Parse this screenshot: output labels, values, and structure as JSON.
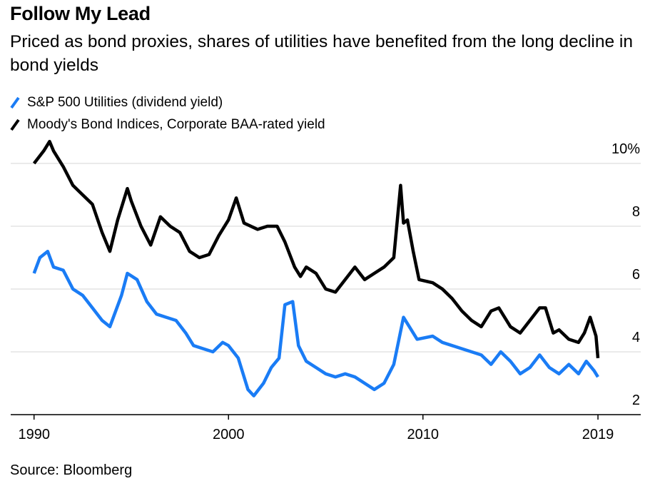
{
  "chart_data": {
    "type": "line",
    "title": "Follow My Lead",
    "subtitle": "Priced as bond proxies, shares of utilities have benefited from the long decline in bond yields",
    "source": "Source: Bloomberg",
    "xlim": [
      1988.8,
      2021.2
    ],
    "xticks": [
      1990,
      2000,
      2010,
      2019
    ],
    "ylim": [
      2,
      11
    ],
    "yticks": [
      2,
      4,
      6,
      8,
      {
        "value": 10,
        "label": "10%"
      }
    ],
    "grid": true,
    "series": [
      {
        "name": "S&P 500 Utilities (dividend yield)",
        "color": "#1a7cf5",
        "x": [
          1990.0,
          1990.3,
          1990.7,
          1991.0,
          1991.5,
          1992.0,
          1992.5,
          1993.0,
          1993.5,
          1993.9,
          1994.5,
          1994.8,
          1995.3,
          1995.8,
          1996.3,
          1996.8,
          1997.3,
          1997.8,
          1998.2,
          1998.7,
          1999.2,
          1999.7,
          2000.0,
          2000.5,
          2001.0,
          2001.3,
          2001.8,
          2002.2,
          2002.6,
          2002.9,
          2003.3,
          2003.6,
          2004.0,
          2004.5,
          2005.0,
          2005.5,
          2006.0,
          2006.5,
          2007.0,
          2007.5,
          2008.0,
          2008.5,
          2009.0,
          2009.3,
          2009.7,
          2010.5,
          2011.0,
          2011.5,
          2012.0,
          2012.5,
          2013.0,
          2013.5,
          2014.0,
          2014.5,
          2015.0,
          2015.5,
          2016.0,
          2016.5,
          2017.0,
          2017.5,
          2018.0,
          2018.4,
          2018.8,
          2019.0
        ],
        "values": [
          6.5,
          7.0,
          7.2,
          6.7,
          6.6,
          6.0,
          5.8,
          5.4,
          5.0,
          4.8,
          5.8,
          6.5,
          6.3,
          5.6,
          5.2,
          5.1,
          5.0,
          4.6,
          4.2,
          4.1,
          4.0,
          4.3,
          4.2,
          3.8,
          2.8,
          2.6,
          3.0,
          3.5,
          3.8,
          5.5,
          5.6,
          4.2,
          3.7,
          3.5,
          3.3,
          3.2,
          3.3,
          3.2,
          3.0,
          2.8,
          3.0,
          3.6,
          5.1,
          4.8,
          4.4,
          4.5,
          4.3,
          4.2,
          4.1,
          4.0,
          3.9,
          3.6,
          4.0,
          3.7,
          3.3,
          3.5,
          3.9,
          3.5,
          3.3,
          3.6,
          3.3,
          3.7,
          3.4,
          3.2
        ]
      },
      {
        "name": "Moody's Bond Indices, Corporate BAA-rated yield",
        "color": "#000000",
        "x": [
          1990.0,
          1990.5,
          1990.8,
          1991.0,
          1991.5,
          1992.0,
          1992.5,
          1993.0,
          1993.5,
          1993.9,
          1994.3,
          1994.8,
          1995.0,
          1995.5,
          1996.0,
          1996.5,
          1997.0,
          1997.5,
          1998.0,
          1998.5,
          1999.0,
          1999.5,
          2000.0,
          2000.4,
          2000.8,
          2001.5,
          2002.0,
          2002.5,
          2002.9,
          2003.4,
          2003.7,
          2004.0,
          2004.5,
          2005.0,
          2005.5,
          2006.0,
          2006.5,
          2007.0,
          2007.5,
          2008.0,
          2008.5,
          2008.85,
          2009.0,
          2009.2,
          2009.5,
          2009.8,
          2010.5,
          2011.0,
          2011.5,
          2012.0,
          2012.5,
          2013.0,
          2013.5,
          2013.9,
          2014.5,
          2015.0,
          2015.5,
          2016.0,
          2016.3,
          2016.7,
          2017.0,
          2017.5,
          2018.0,
          2018.3,
          2018.6,
          2018.9,
          2019.0
        ],
        "values": [
          10.0,
          10.4,
          10.7,
          10.4,
          9.9,
          9.3,
          9.0,
          8.7,
          7.8,
          7.2,
          8.2,
          9.2,
          8.8,
          8.0,
          7.4,
          8.3,
          8.0,
          7.8,
          7.2,
          7.0,
          7.1,
          7.7,
          8.2,
          8.9,
          8.1,
          7.9,
          8.0,
          8.0,
          7.5,
          6.7,
          6.4,
          6.7,
          6.5,
          6.0,
          5.9,
          6.3,
          6.7,
          6.3,
          6.5,
          6.7,
          7.0,
          9.3,
          8.1,
          8.2,
          7.2,
          6.3,
          6.2,
          6.0,
          5.7,
          5.3,
          5.0,
          4.8,
          5.3,
          5.4,
          4.8,
          4.6,
          5.0,
          5.4,
          5.4,
          4.6,
          4.7,
          4.4,
          4.3,
          4.6,
          5.1,
          4.5,
          3.8
        ]
      }
    ]
  }
}
